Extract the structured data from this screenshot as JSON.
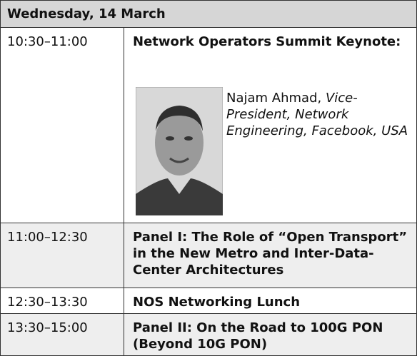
{
  "header": {
    "title": "Wednesday, 14 March"
  },
  "rows": [
    {
      "time": "10:30–11:00",
      "title": "Network Operators Summit Keynote:",
      "speaker": {
        "name": "Najam Ahmad,",
        "role": "Vice-President, Network Engineering, Facebook, USA"
      }
    },
    {
      "time": "11:00–12:30",
      "title": "Panel I: The Role of “Open Transport” in the New Metro and Inter-Data-Center Architectures"
    },
    {
      "time": "12:30–13:30",
      "title": "NOS Networking Lunch"
    },
    {
      "time": "13:30–15:00",
      "title": "Panel II: On the Road to 100G PON (Beyond 10G PON)"
    }
  ]
}
